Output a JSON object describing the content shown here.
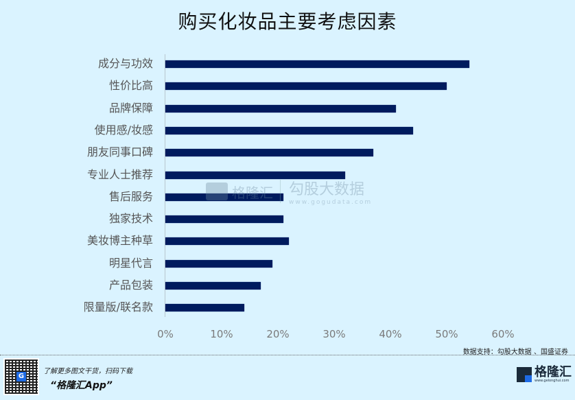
{
  "title": "购买化妆品主要考虑因素",
  "chart_data": {
    "type": "bar",
    "orientation": "horizontal",
    "title": "购买化妆品主要考虑因素",
    "xlabel": "",
    "ylabel": "",
    "xlim": [
      0,
      60
    ],
    "x_ticks": [
      "0%",
      "10%",
      "20%",
      "30%",
      "40%",
      "50%",
      "60%"
    ],
    "grid": false,
    "legend": null,
    "categories": [
      "成分与功效",
      "性价比高",
      "品牌保障",
      "使用感/妆感",
      "朋友同事口碑",
      "专业人士推荐",
      "售后服务",
      "独家技术",
      "美妆博主种草",
      "明星代言",
      "产品包装",
      "限量版/联名款"
    ],
    "values": [
      54,
      50,
      41,
      44,
      37,
      32,
      21,
      21,
      22,
      19,
      17,
      14
    ],
    "unit": "%",
    "bar_color": "#001b5e"
  },
  "watermark": {
    "brand": "格隆汇",
    "right_big": "勾股大数据",
    "right_small": "www.gogudata.com"
  },
  "source": "数据支持：勾股大数据 、国盛证券",
  "footer": {
    "promo_line1": "了解更多图文干货，扫码下载",
    "promo_line2": "“格隆汇App”",
    "qr_logo": "G",
    "brand_name": "格隆汇",
    "brand_url": "www.gelonghui.com"
  }
}
